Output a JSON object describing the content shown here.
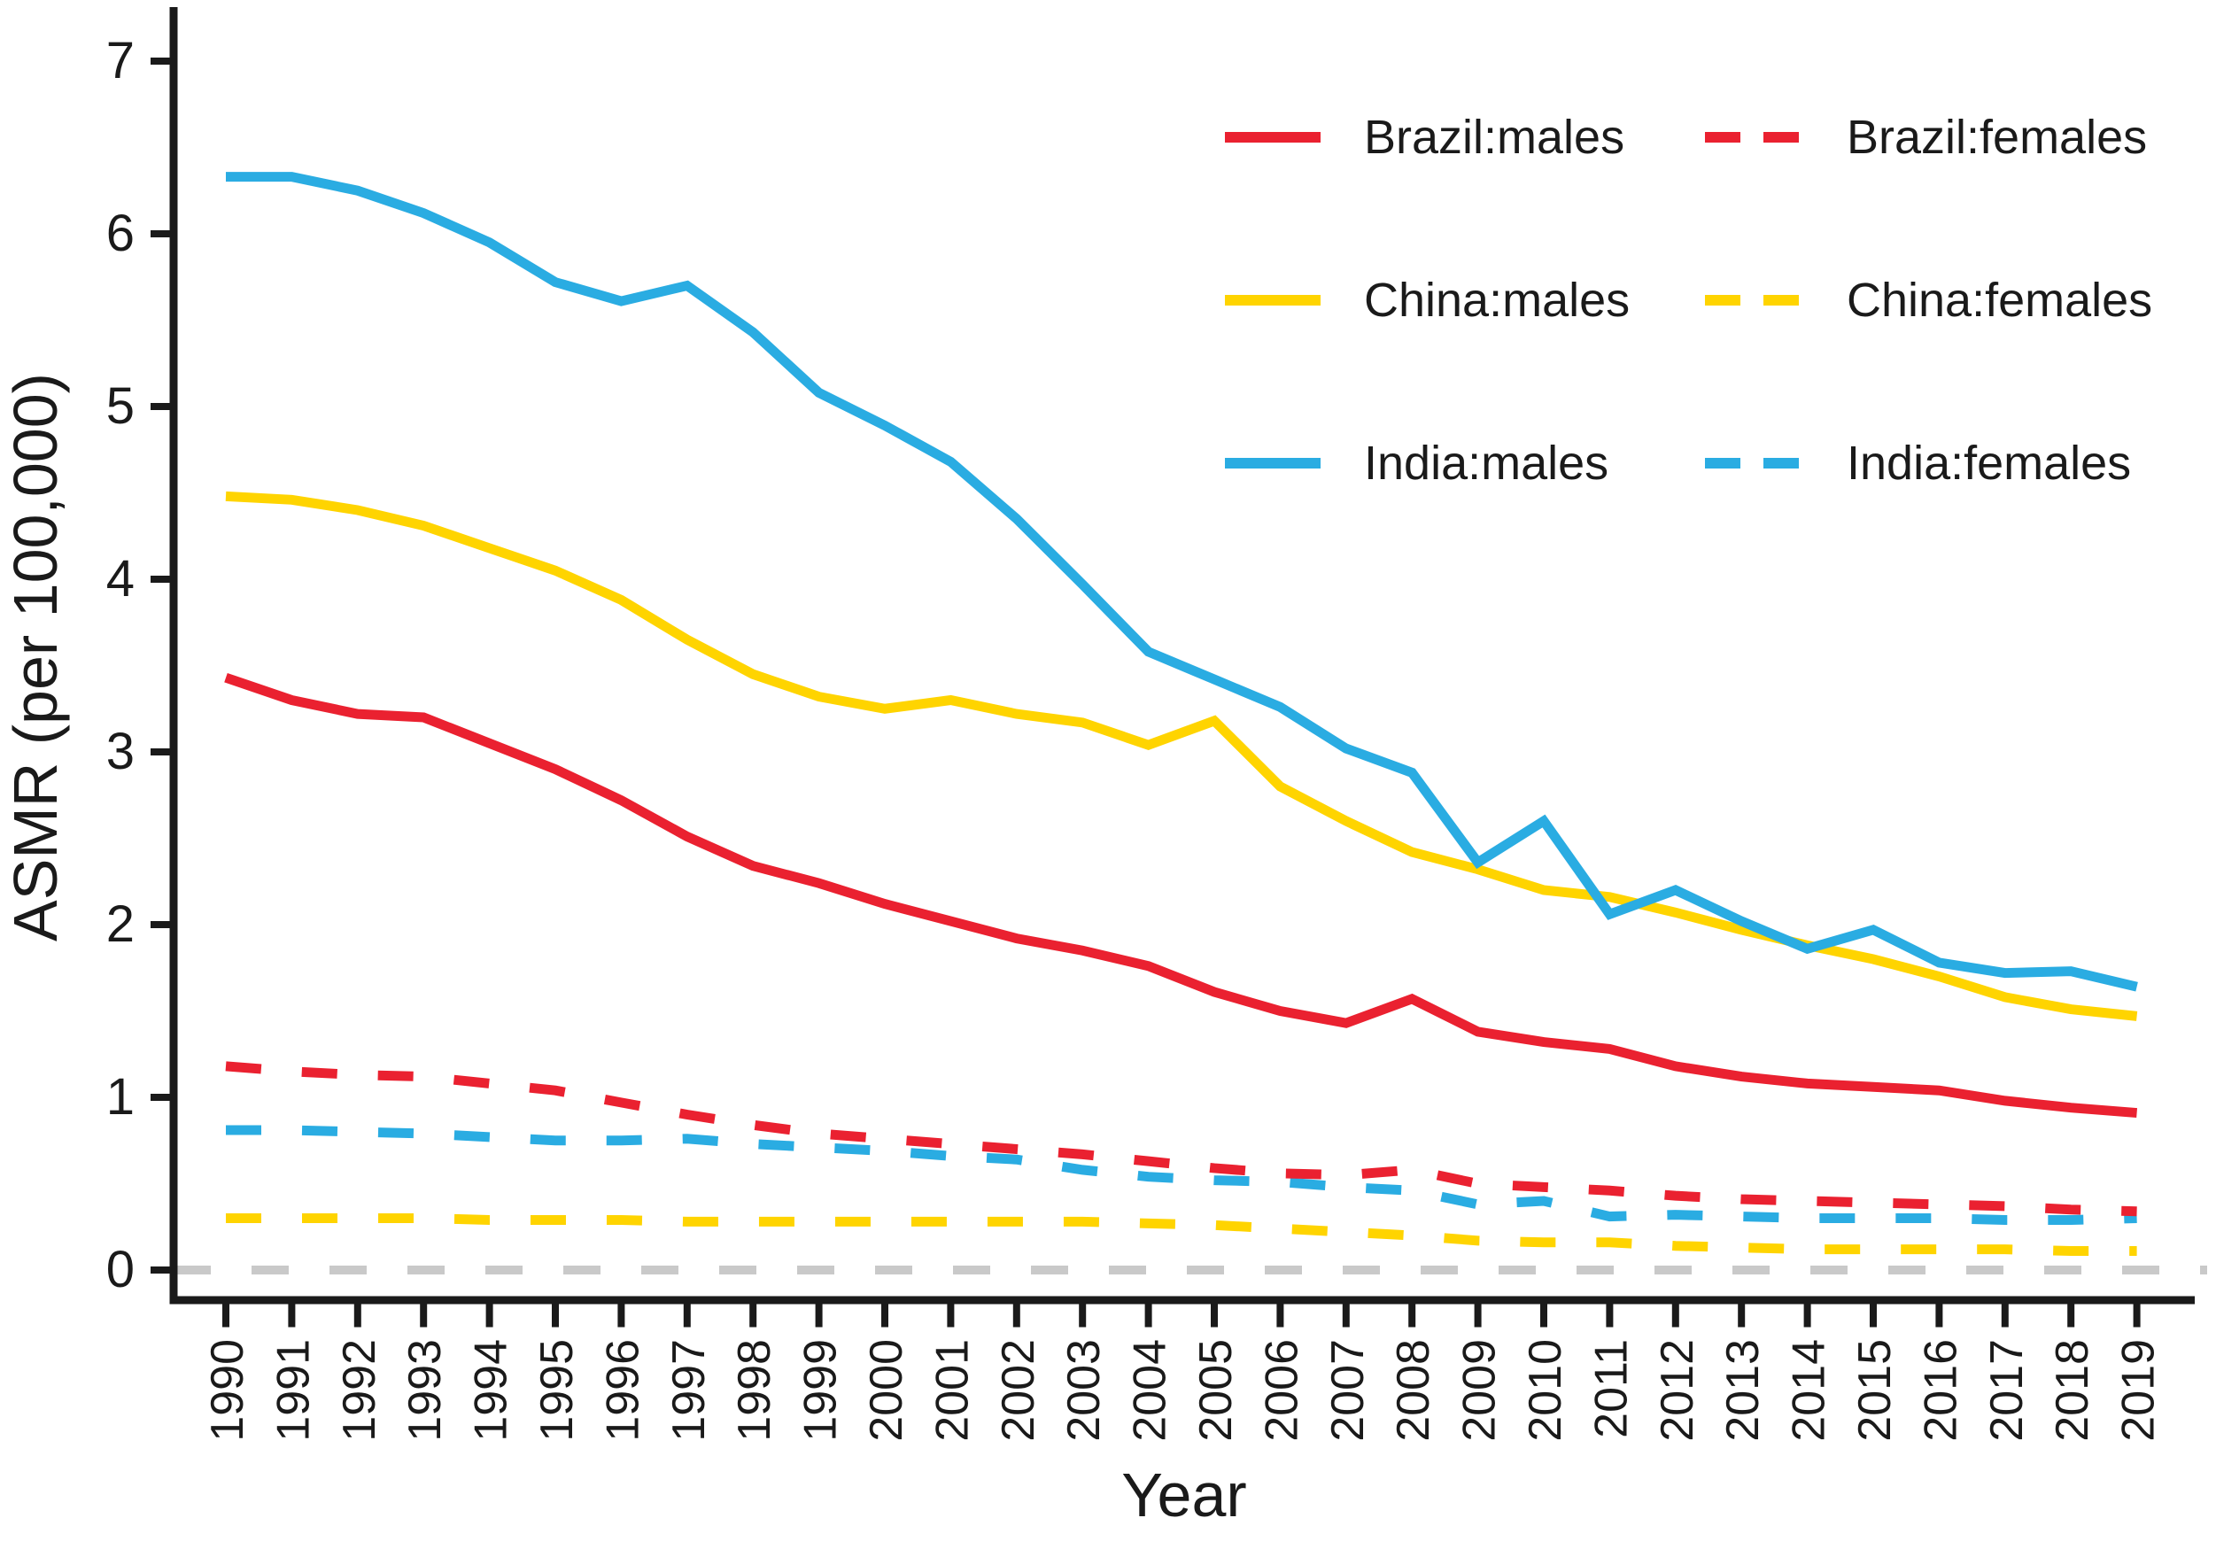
{
  "figure": {
    "y_axis_title": "ASMR (per 100,000)",
    "x_axis_title": "Year",
    "y_ticks": [
      "0",
      "1",
      "2",
      "3",
      "4",
      "5",
      "6",
      "7"
    ],
    "x_ticks": [
      "1990",
      "1991",
      "1992",
      "1993",
      "1994",
      "1995",
      "1996",
      "1997",
      "1998",
      "1999",
      "2000",
      "2001",
      "2002",
      "2003",
      "2004",
      "2005",
      "2006",
      "2007",
      "2008",
      "2009",
      "2010",
      "2011",
      "2012",
      "2013",
      "2014",
      "2015",
      "2016",
      "2017",
      "2018",
      "2019"
    ]
  },
  "legend": {
    "entries": [
      {
        "label": "Brazil:males",
        "color": "#EA2130",
        "dashed": false,
        "row": 1,
        "col": 1
      },
      {
        "label": "China:males",
        "color": "#FFD400",
        "dashed": false,
        "row": 2,
        "col": 1
      },
      {
        "label": "India:males",
        "color": "#2AACE2",
        "dashed": false,
        "row": 3,
        "col": 1
      },
      {
        "label": "Brazil:females",
        "color": "#EA2130",
        "dashed": true,
        "row": 1,
        "col": 2
      },
      {
        "label": "China:females",
        "color": "#FFD400",
        "dashed": true,
        "row": 2,
        "col": 2
      },
      {
        "label": "India:females",
        "color": "#2AACE2",
        "dashed": true,
        "row": 3,
        "col": 2
      }
    ]
  },
  "colors": {
    "red": "#EA2130",
    "yellow": "#FFD400",
    "blue": "#2AACE2",
    "zero_line_gray": "#C9C9C9",
    "axis": "#1a1a1a",
    "tick_text": "#1a1a1a"
  },
  "chart_data": {
    "type": "line",
    "title": "",
    "xlabel": "Year",
    "ylabel": "ASMR (per 100,000)",
    "ylim": [
      0,
      7
    ],
    "grid": false,
    "legend_position": "top-right-inside",
    "x": [
      1990,
      1991,
      1992,
      1993,
      1994,
      1995,
      1996,
      1997,
      1998,
      1999,
      2000,
      2001,
      2002,
      2003,
      2004,
      2005,
      2006,
      2007,
      2008,
      2009,
      2010,
      2011,
      2012,
      2013,
      2014,
      2015,
      2016,
      2017,
      2018,
      2019
    ],
    "series": [
      {
        "name": "Brazil:males",
        "color": "#EA2130",
        "dashed": false,
        "values": [
          3.43,
          3.3,
          3.22,
          3.2,
          3.05,
          2.9,
          2.72,
          2.51,
          2.34,
          2.24,
          2.12,
          2.02,
          1.92,
          1.85,
          1.76,
          1.61,
          1.5,
          1.43,
          1.57,
          1.38,
          1.32,
          1.28,
          1.18,
          1.12,
          1.08,
          1.06,
          1.04,
          0.98,
          0.94,
          0.91
        ]
      },
      {
        "name": "China:males",
        "color": "#FFD400",
        "dashed": false,
        "values": [
          4.48,
          4.46,
          4.4,
          4.31,
          4.18,
          4.05,
          3.88,
          3.65,
          3.45,
          3.32,
          3.25,
          3.3,
          3.22,
          3.17,
          3.04,
          3.18,
          2.8,
          2.6,
          2.42,
          2.32,
          2.2,
          2.16,
          2.07,
          1.97,
          1.88,
          1.8,
          1.7,
          1.58,
          1.51,
          1.47
        ]
      },
      {
        "name": "India:males",
        "color": "#2AACE2",
        "dashed": false,
        "values": [
          6.33,
          6.33,
          6.25,
          6.12,
          5.95,
          5.72,
          5.61,
          5.7,
          5.43,
          5.08,
          4.89,
          4.68,
          4.35,
          3.97,
          3.58,
          3.42,
          3.26,
          3.02,
          2.88,
          2.36,
          2.6,
          2.06,
          2.2,
          2.02,
          1.86,
          1.97,
          1.78,
          1.72,
          1.73,
          1.64
        ]
      },
      {
        "name": "India:females",
        "color": "#2AACE2",
        "dashed": true,
        "values": [
          0.81,
          0.81,
          0.8,
          0.79,
          0.77,
          0.75,
          0.75,
          0.76,
          0.73,
          0.71,
          0.69,
          0.66,
          0.64,
          0.58,
          0.54,
          0.52,
          0.51,
          0.48,
          0.46,
          0.38,
          0.4,
          0.31,
          0.32,
          0.31,
          0.3,
          0.3,
          0.3,
          0.29,
          0.29,
          0.3
        ]
      },
      {
        "name": "China:females",
        "color": "#FFD400",
        "dashed": true,
        "values": [
          0.3,
          0.3,
          0.3,
          0.3,
          0.29,
          0.29,
          0.29,
          0.28,
          0.28,
          0.28,
          0.28,
          0.28,
          0.28,
          0.28,
          0.27,
          0.26,
          0.24,
          0.22,
          0.2,
          0.17,
          0.16,
          0.16,
          0.14,
          0.13,
          0.12,
          0.12,
          0.12,
          0.12,
          0.11,
          0.11
        ]
      },
      {
        "name": "Brazil:females",
        "color": "#EA2130",
        "dashed": true,
        "values": [
          1.18,
          1.15,
          1.13,
          1.12,
          1.08,
          1.04,
          0.97,
          0.9,
          0.84,
          0.79,
          0.76,
          0.73,
          0.7,
          0.67,
          0.63,
          0.59,
          0.56,
          0.55,
          0.58,
          0.5,
          0.48,
          0.46,
          0.43,
          0.41,
          0.4,
          0.39,
          0.38,
          0.37,
          0.35,
          0.34
        ]
      }
    ],
    "baseline": {
      "value": 0,
      "color": "#C9C9C9",
      "dashed": true
    }
  }
}
